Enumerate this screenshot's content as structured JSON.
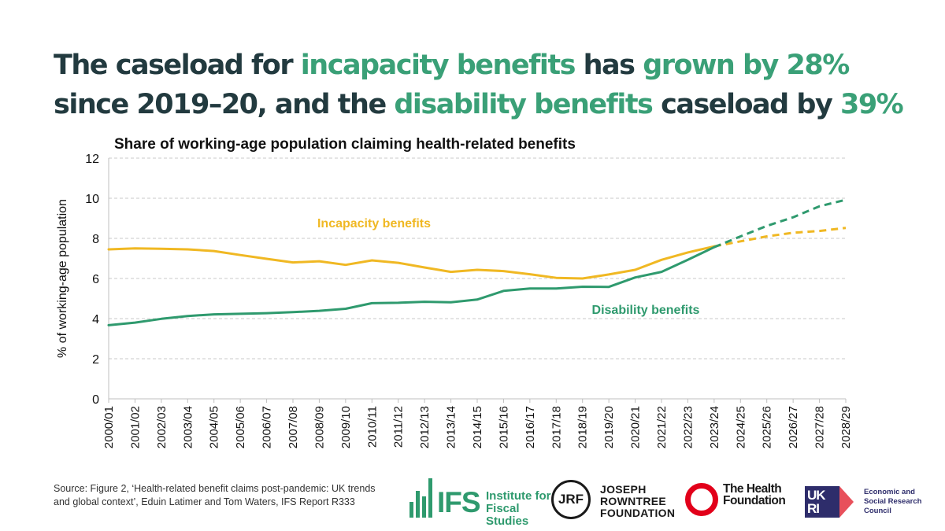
{
  "headline": {
    "p1": "The caseload for ",
    "h1": "incapacity benefits",
    "p2": " has ",
    "h2": "grown by 28%",
    "p3": " since 2019–20, and the ",
    "h3": "disability benefits",
    "p4": " caseload by ",
    "h4": "39%"
  },
  "colors": {
    "incapacity": "#f0b823",
    "disability": "#2f9a6e",
    "headline_highlight": "#3aa077",
    "headline_text": "#223a3f"
  },
  "chart_data": {
    "type": "line",
    "title": "Share of working-age population claiming health-related benefits",
    "ylabel": "% of working-age population",
    "xlabel": "",
    "ylim": [
      0,
      12
    ],
    "yticks": [
      0,
      2,
      4,
      6,
      8,
      10,
      12
    ],
    "grid": "horizontal dashed",
    "forecast_from": "2023/24",
    "categories": [
      "2000/01",
      "2001/02",
      "2002/03",
      "2003/04",
      "2004/05",
      "2005/06",
      "2006/07",
      "2007/08",
      "2008/09",
      "2009/10",
      "2010/11",
      "2011/12",
      "2012/13",
      "2013/14",
      "2014/15",
      "2015/16",
      "2016/17",
      "2017/18",
      "2018/19",
      "2019/20",
      "2020/21",
      "2021/22",
      "2022/23",
      "2023/24",
      "2024/25",
      "2025/26",
      "2026/27",
      "2027/28",
      "2028/29"
    ],
    "series": [
      {
        "name": "Incapacity benefits",
        "color": "#f0b823",
        "values": [
          7.45,
          7.5,
          7.48,
          7.45,
          7.37,
          7.17,
          6.98,
          6.8,
          6.86,
          6.68,
          6.9,
          6.78,
          6.55,
          6.33,
          6.43,
          6.37,
          6.21,
          6.03,
          6.0,
          6.2,
          6.43,
          6.93,
          7.3,
          7.6,
          7.85,
          8.1,
          8.28,
          8.37,
          8.52
        ]
      },
      {
        "name": "Disability benefits",
        "color": "#2f9a6e",
        "values": [
          3.67,
          3.8,
          3.99,
          4.13,
          4.21,
          4.24,
          4.27,
          4.32,
          4.39,
          4.49,
          4.77,
          4.79,
          4.84,
          4.81,
          4.95,
          5.38,
          5.5,
          5.5,
          5.59,
          5.58,
          6.05,
          6.33,
          6.93,
          7.56,
          8.1,
          8.62,
          9.05,
          9.6,
          9.92
        ]
      }
    ]
  },
  "source": "Source: Figure 2, ‘Health-related benefit claims post-pandemic: UK trends and global context’, Eduin Latimer and Tom Waters, IFS Report R333",
  "logos": {
    "ifs": {
      "acronym": "IFS",
      "name": "Institute for Fiscal Studies"
    },
    "jrf": {
      "acronym": "JRF",
      "name": "JOSEPH ROWNTREE FOUNDATION"
    },
    "thf": {
      "name": "The Health Foundation"
    },
    "esrc": {
      "mark": "UK RI",
      "name": "Economic and Social Research Council"
    }
  }
}
